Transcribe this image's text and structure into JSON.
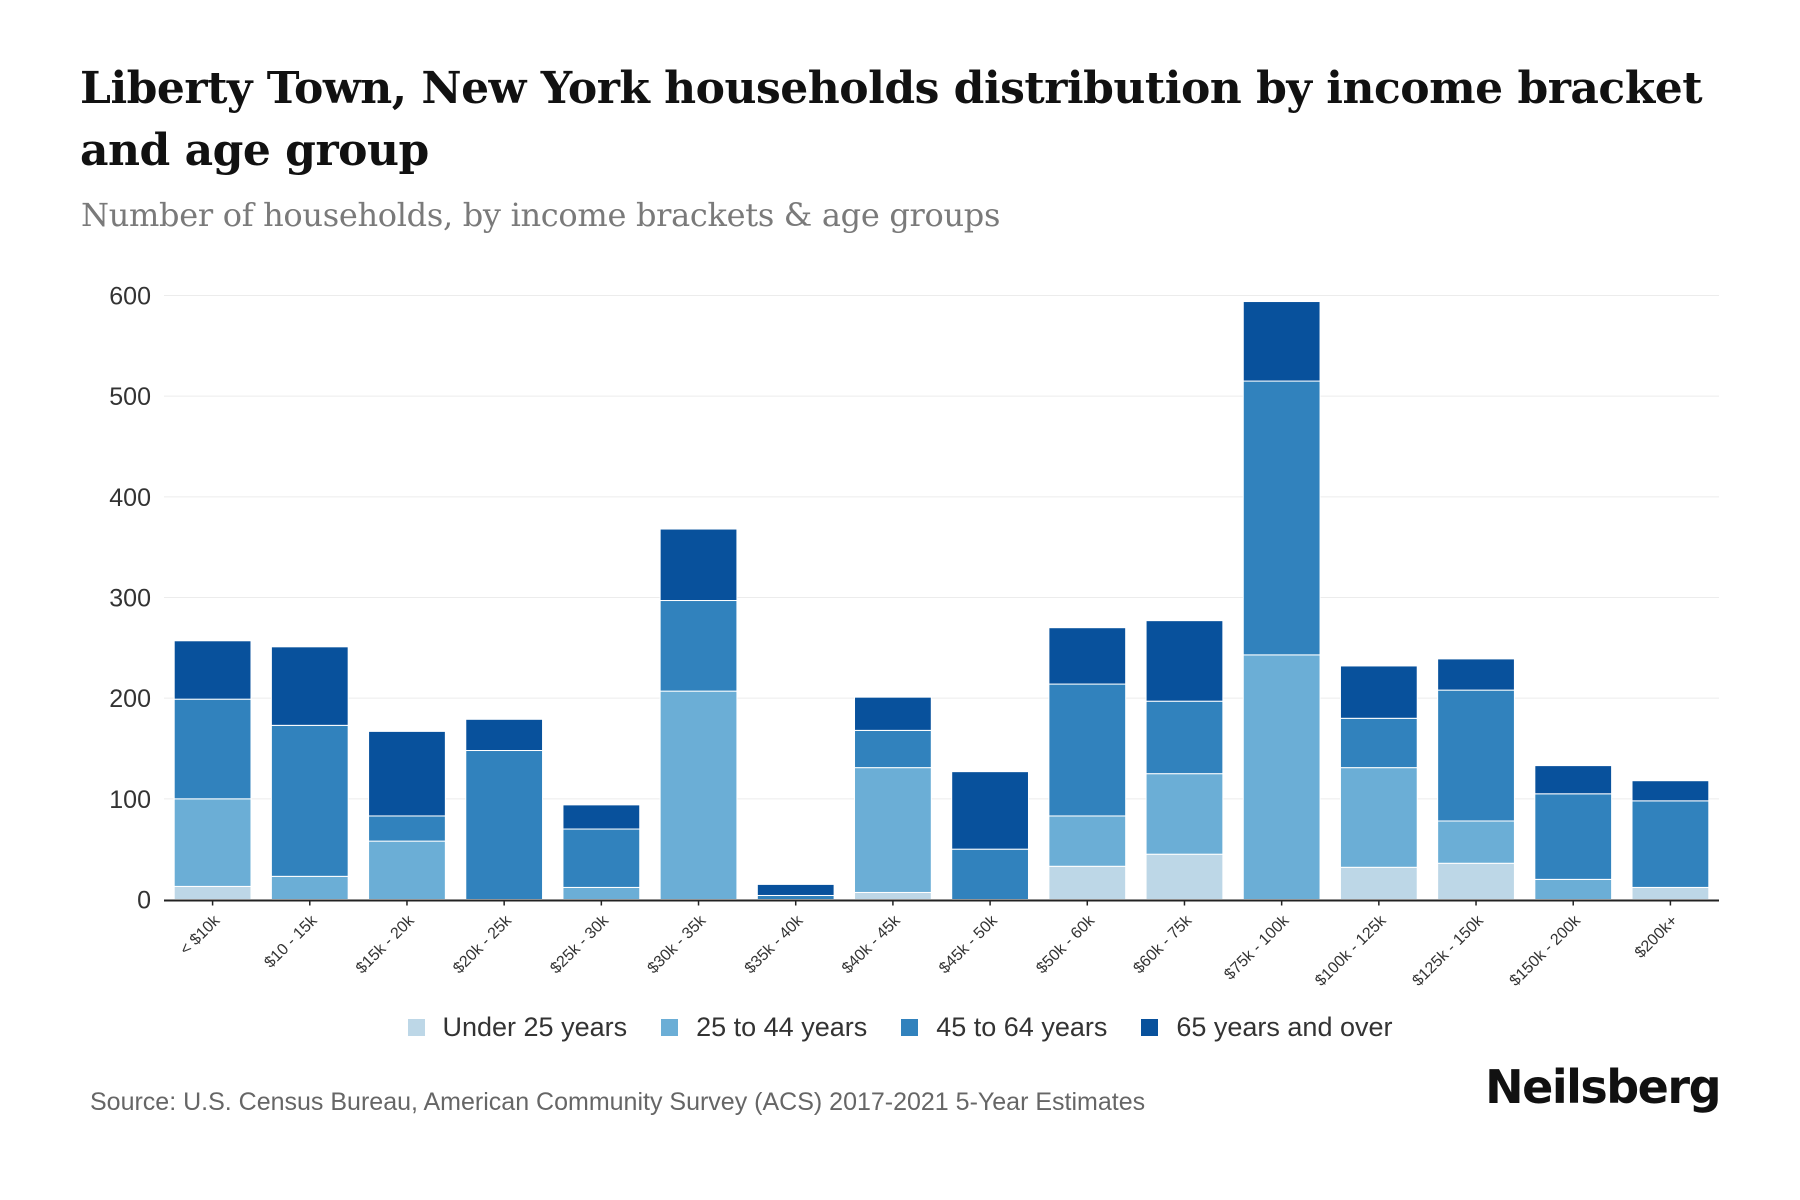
{
  "header": {
    "title": "Liberty Town, New York households distribution by income bracket and age group",
    "subtitle": "Number of households, by income brackets & age groups"
  },
  "footer": {
    "source": "Source: U.S. Census Bureau, American Community Survey (ACS) 2017-2021 5-Year Estimates",
    "logo": "Neilsberg"
  },
  "chart_data": {
    "type": "bar",
    "stacked": true,
    "title": "Liberty Town, New York households distribution by income bracket and age group",
    "subtitle": "Number of households, by income brackets & age groups",
    "xlabel": "",
    "ylabel": "",
    "ylim": [
      0,
      600
    ],
    "yticks": [
      0,
      100,
      200,
      300,
      400,
      500,
      600
    ],
    "grid": true,
    "legend_position": "bottom",
    "categories": [
      "< $10k",
      "$10 - 15k",
      "$15k - 20k",
      "$20k - 25k",
      "$25k - 30k",
      "$30k - 35k",
      "$35k - 40k",
      "$40k - 45k",
      "$45k - 50k",
      "$50k - 60k",
      "$60k - 75k",
      "$75k - 100k",
      "$100k - 125k",
      "$125k - 150k",
      "$150k - 200k",
      "$200k+"
    ],
    "series": [
      {
        "name": "Under 25 years",
        "color": "#bdd7e7",
        "values": [
          13,
          0,
          0,
          0,
          0,
          0,
          0,
          7,
          0,
          33,
          45,
          0,
          32,
          36,
          0,
          12
        ]
      },
      {
        "name": "25 to 44 years",
        "color": "#6baed6",
        "values": [
          87,
          23,
          58,
          0,
          12,
          207,
          0,
          124,
          0,
          50,
          80,
          243,
          99,
          42,
          20,
          0
        ]
      },
      {
        "name": "45 to 64 years",
        "color": "#3182bd",
        "values": [
          99,
          150,
          25,
          148,
          58,
          90,
          4,
          37,
          50,
          131,
          72,
          272,
          49,
          130,
          85,
          86
        ]
      },
      {
        "name": "65 years and over",
        "color": "#08519c",
        "values": [
          58,
          78,
          84,
          31,
          24,
          71,
          11,
          33,
          77,
          56,
          80,
          79,
          52,
          31,
          28,
          20
        ]
      }
    ]
  }
}
